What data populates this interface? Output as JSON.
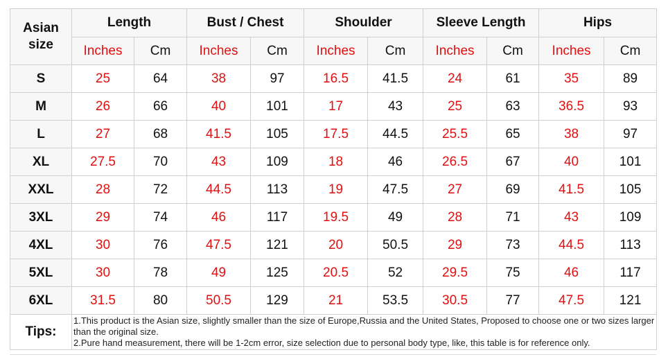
{
  "table": {
    "corner": "Asian size",
    "groups": [
      "Length",
      "Bust / Chest",
      "Shoulder",
      "Sleeve Length",
      "Hips"
    ],
    "units": [
      "Inches",
      "Cm"
    ],
    "rows": [
      {
        "size": "S",
        "values": [
          25,
          64,
          38,
          97,
          16.5,
          41.5,
          24,
          61,
          35,
          89
        ]
      },
      {
        "size": "M",
        "values": [
          26,
          66,
          40,
          101,
          17,
          43,
          25,
          63,
          36.5,
          93
        ]
      },
      {
        "size": "L",
        "values": [
          27,
          68,
          41.5,
          105,
          17.5,
          44.5,
          25.5,
          65,
          38,
          97
        ]
      },
      {
        "size": "XL",
        "values": [
          27.5,
          70,
          43,
          109,
          18,
          46,
          26.5,
          67,
          40,
          101
        ]
      },
      {
        "size": "XXL",
        "values": [
          28,
          72,
          44.5,
          113,
          19,
          47.5,
          27,
          69,
          41.5,
          105
        ]
      },
      {
        "size": "3XL",
        "values": [
          29,
          74,
          46,
          117,
          19.5,
          49,
          28,
          71,
          43,
          109
        ]
      },
      {
        "size": "4XL",
        "values": [
          30,
          76,
          47.5,
          121,
          20,
          50.5,
          29,
          73,
          44.5,
          113
        ]
      },
      {
        "size": "5XL",
        "values": [
          30,
          78,
          49,
          125,
          20.5,
          52,
          29.5,
          75,
          46,
          117
        ]
      },
      {
        "size": "6XL",
        "values": [
          31.5,
          80,
          50.5,
          129,
          21,
          53.5,
          30.5,
          77,
          47.5,
          121
        ]
      }
    ],
    "tips_label": "Tips:",
    "tips": [
      "1.This product is the Asian size, slightly smaller than the size of Europe,Russia and the United States, Proposed to choose one or two sizes larger than the original size.",
      "2.Pure hand measurement, there will be 1-2cm error, size selection due to personal body type, like, this table is for reference only."
    ]
  }
}
